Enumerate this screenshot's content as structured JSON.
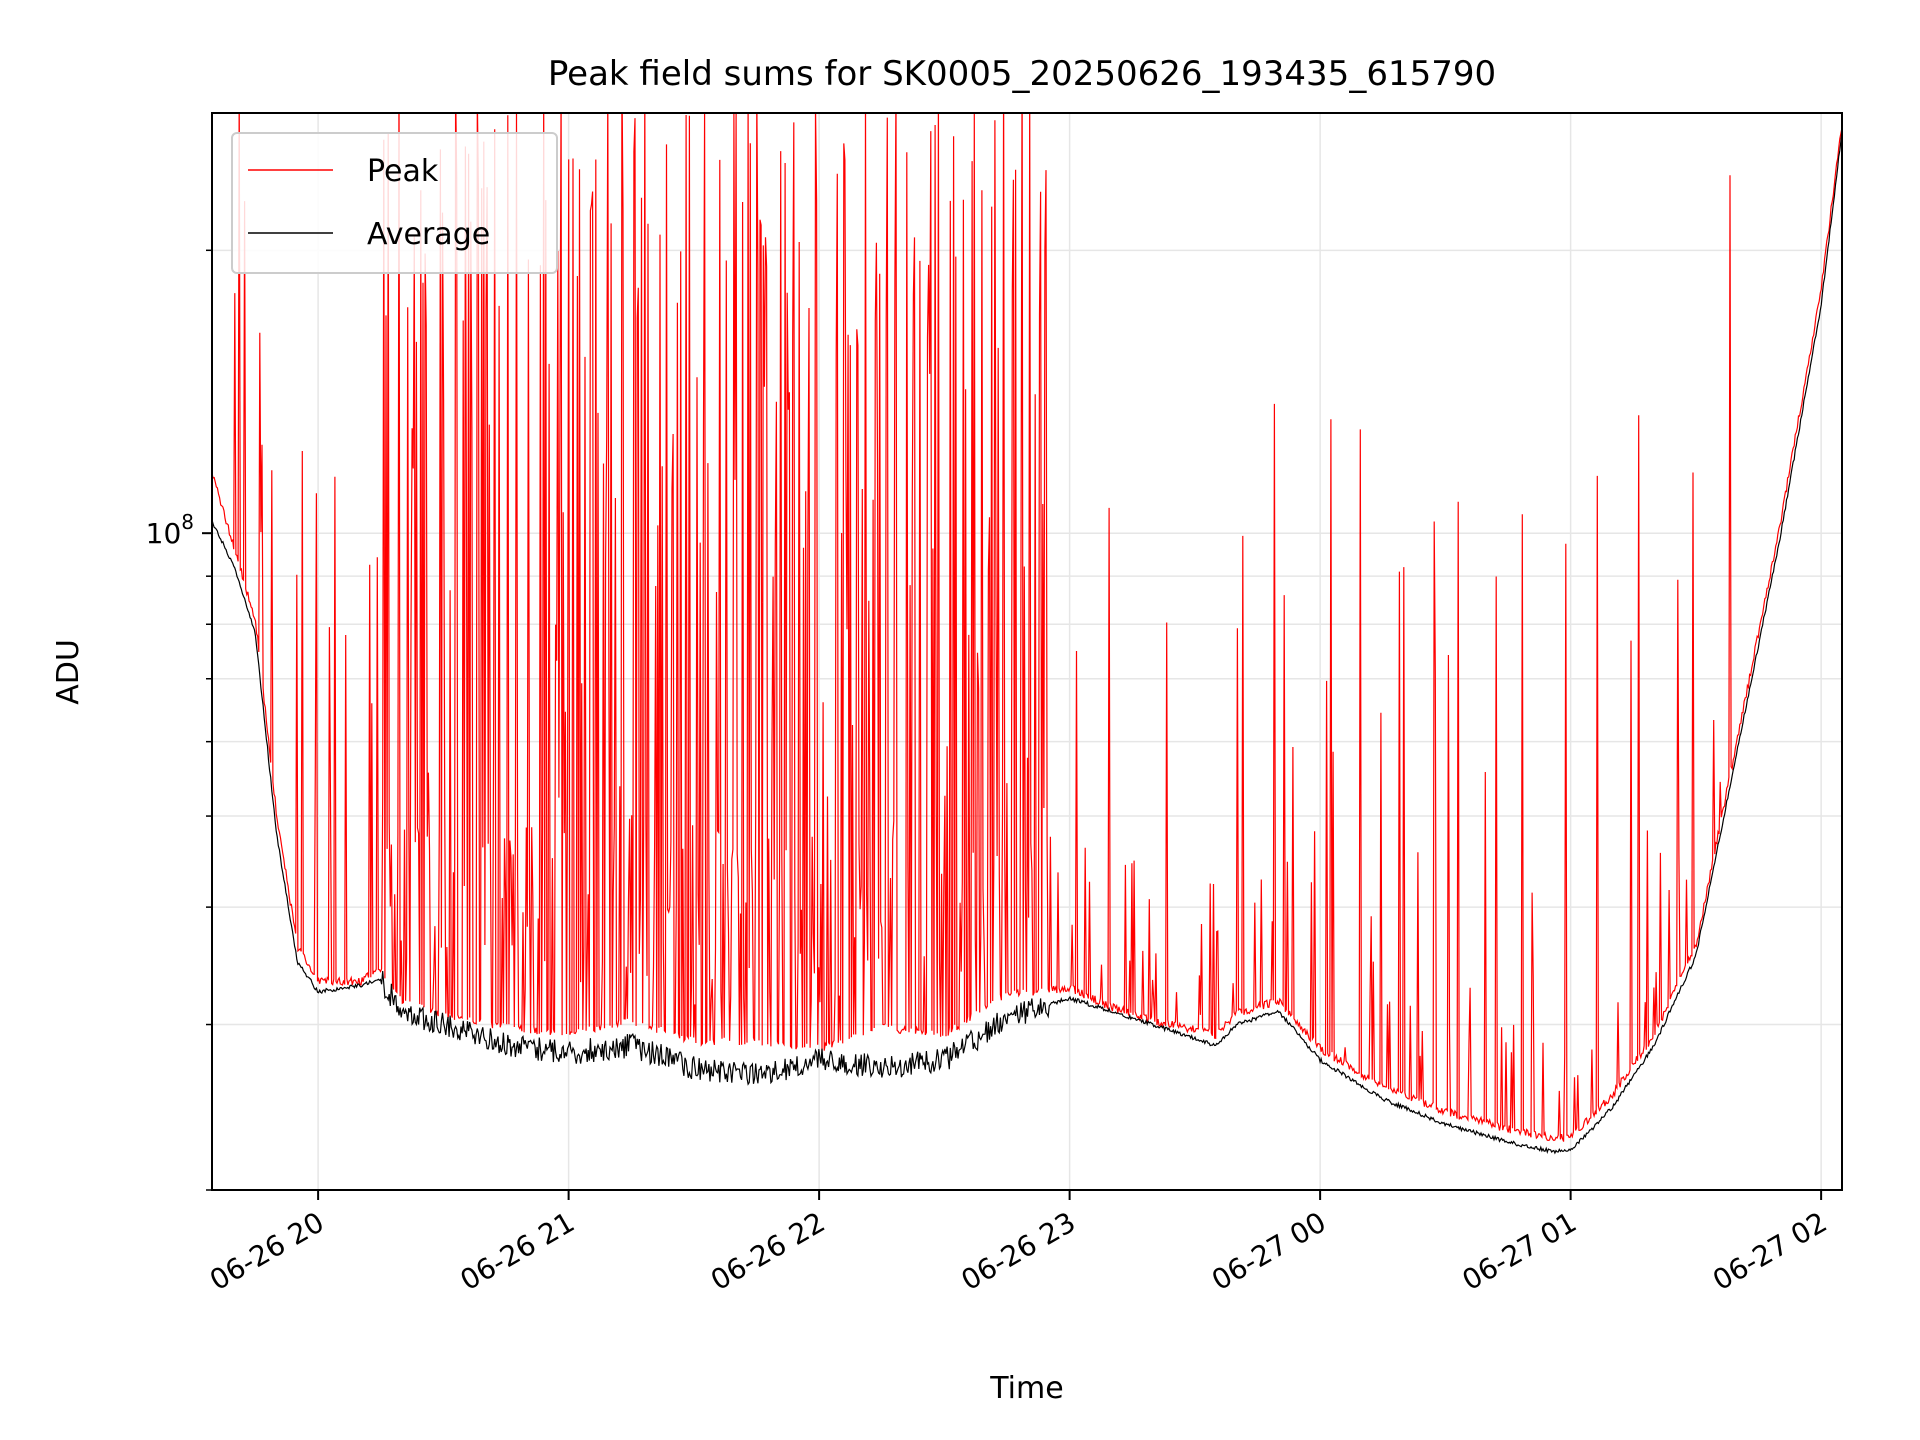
{
  "chart_data": {
    "type": "line",
    "title": "Peak field sums for SK0005_20250626_193435_615790",
    "xlabel": "Time",
    "ylabel": "ADU",
    "y_scale": "log",
    "x_unit": "datetime",
    "xlim": [
      "2025-06-26T19:34:35",
      "2025-06-27T02:05:00"
    ],
    "ylim": [
      20000000,
      280000000
    ],
    "x_ticks": [
      {
        "value": "2025-06-26T20:00:00",
        "label": "06-26 20"
      },
      {
        "value": "2025-06-26T21:00:00",
        "label": "06-26 21"
      },
      {
        "value": "2025-06-26T22:00:00",
        "label": "06-26 22"
      },
      {
        "value": "2025-06-26T23:00:00",
        "label": "06-26 23"
      },
      {
        "value": "2025-06-27T00:00:00",
        "label": "06-27 00"
      },
      {
        "value": "2025-06-27T01:00:00",
        "label": "06-27 01"
      },
      {
        "value": "2025-06-27T02:00:00",
        "label": "06-27 02"
      }
    ],
    "y_major_ticks": [
      {
        "value": 100000000,
        "base": "10",
        "exp": "8"
      }
    ],
    "y_minor_ticks": [
      20000000,
      30000000,
      40000000,
      50000000,
      60000000,
      70000000,
      80000000,
      90000000,
      200000000
    ],
    "grid": true,
    "legend": {
      "placement": "upper-left"
    },
    "series": [
      {
        "name": "Peak",
        "color": "#ff0000",
        "x": [
          "2025-06-26T19:34:35",
          "2025-06-26T19:40:00",
          "2025-06-26T19:45:00",
          "2025-06-26T19:50:00",
          "2025-06-26T19:55:00",
          "2025-06-26T20:00:00",
          "2025-06-26T20:10:00",
          "2025-06-26T20:15:00",
          "2025-06-26T20:20:00",
          "2025-06-26T20:30:00",
          "2025-06-26T20:45:00",
          "2025-06-26T21:00:00",
          "2025-06-26T21:15:00",
          "2025-06-26T21:30:00",
          "2025-06-26T21:45:00",
          "2025-06-26T22:00:00",
          "2025-06-26T22:15:00",
          "2025-06-26T22:30:00",
          "2025-06-26T22:45:00",
          "2025-06-26T23:00:00",
          "2025-06-26T23:10:00",
          "2025-06-26T23:20:00",
          "2025-06-26T23:35:00",
          "2025-06-26T23:40:00",
          "2025-06-26T23:50:00",
          "2025-06-27T00:00:00",
          "2025-06-27T00:15:00",
          "2025-06-27T00:30:00",
          "2025-06-27T00:45:00",
          "2025-06-27T00:55:00",
          "2025-06-27T01:00:00",
          "2025-06-27T01:10:00",
          "2025-06-27T01:20:00",
          "2025-06-27T01:30:00",
          "2025-06-27T01:40:00",
          "2025-06-27T01:50:00",
          "2025-06-27T02:00:00",
          "2025-06-27T02:05:00"
        ],
        "values": [
          115000000,
          95000000,
          80000000,
          50000000,
          36000000,
          33000000,
          33000000,
          34000000,
          31500000,
          30500000,
          29500000,
          29000000,
          30000000,
          28500000,
          28500000,
          28000000,
          29500000,
          29000000,
          32000000,
          32500000,
          31000000,
          30000000,
          29000000,
          30500000,
          31500000,
          28000000,
          25500000,
          24000000,
          23000000,
          22500000,
          22500000,
          25000000,
          29000000,
          36000000,
          60000000,
          100000000,
          180000000,
          270000000
        ]
      },
      {
        "name": "Average",
        "color": "#000000",
        "x": [
          "2025-06-26T19:34:35",
          "2025-06-26T19:40:00",
          "2025-06-26T19:45:00",
          "2025-06-26T19:50:00",
          "2025-06-26T19:55:00",
          "2025-06-26T20:00:00",
          "2025-06-26T20:10:00",
          "2025-06-26T20:15:00",
          "2025-06-26T20:20:00",
          "2025-06-26T20:30:00",
          "2025-06-26T20:45:00",
          "2025-06-26T21:00:00",
          "2025-06-26T21:15:00",
          "2025-06-26T21:30:00",
          "2025-06-26T21:45:00",
          "2025-06-26T22:00:00",
          "2025-06-26T22:15:00",
          "2025-06-26T22:30:00",
          "2025-06-26T22:45:00",
          "2025-06-26T23:00:00",
          "2025-06-26T23:10:00",
          "2025-06-26T23:20:00",
          "2025-06-26T23:35:00",
          "2025-06-26T23:40:00",
          "2025-06-26T23:50:00",
          "2025-06-27T00:00:00",
          "2025-06-27T00:15:00",
          "2025-06-27T00:30:00",
          "2025-06-27T00:45:00",
          "2025-06-27T00:55:00",
          "2025-06-27T01:00:00",
          "2025-06-27T01:10:00",
          "2025-06-27T01:20:00",
          "2025-06-27T01:30:00",
          "2025-06-27T01:40:00",
          "2025-06-27T01:50:00",
          "2025-06-27T02:00:00",
          "2025-06-27T02:05:00"
        ],
        "values": [
          103000000,
          92000000,
          78000000,
          48000000,
          35000000,
          32500000,
          33000000,
          33500000,
          31000000,
          30000000,
          28500000,
          28000000,
          28500000,
          27000000,
          26500000,
          27500000,
          27000000,
          27500000,
          30500000,
          32000000,
          31000000,
          30000000,
          28500000,
          30000000,
          31000000,
          27500000,
          25000000,
          23500000,
          22500000,
          22000000,
          22000000,
          24500000,
          28500000,
          35500000,
          59000000,
          98000000,
          175000000,
          268000000
        ]
      }
    ]
  }
}
